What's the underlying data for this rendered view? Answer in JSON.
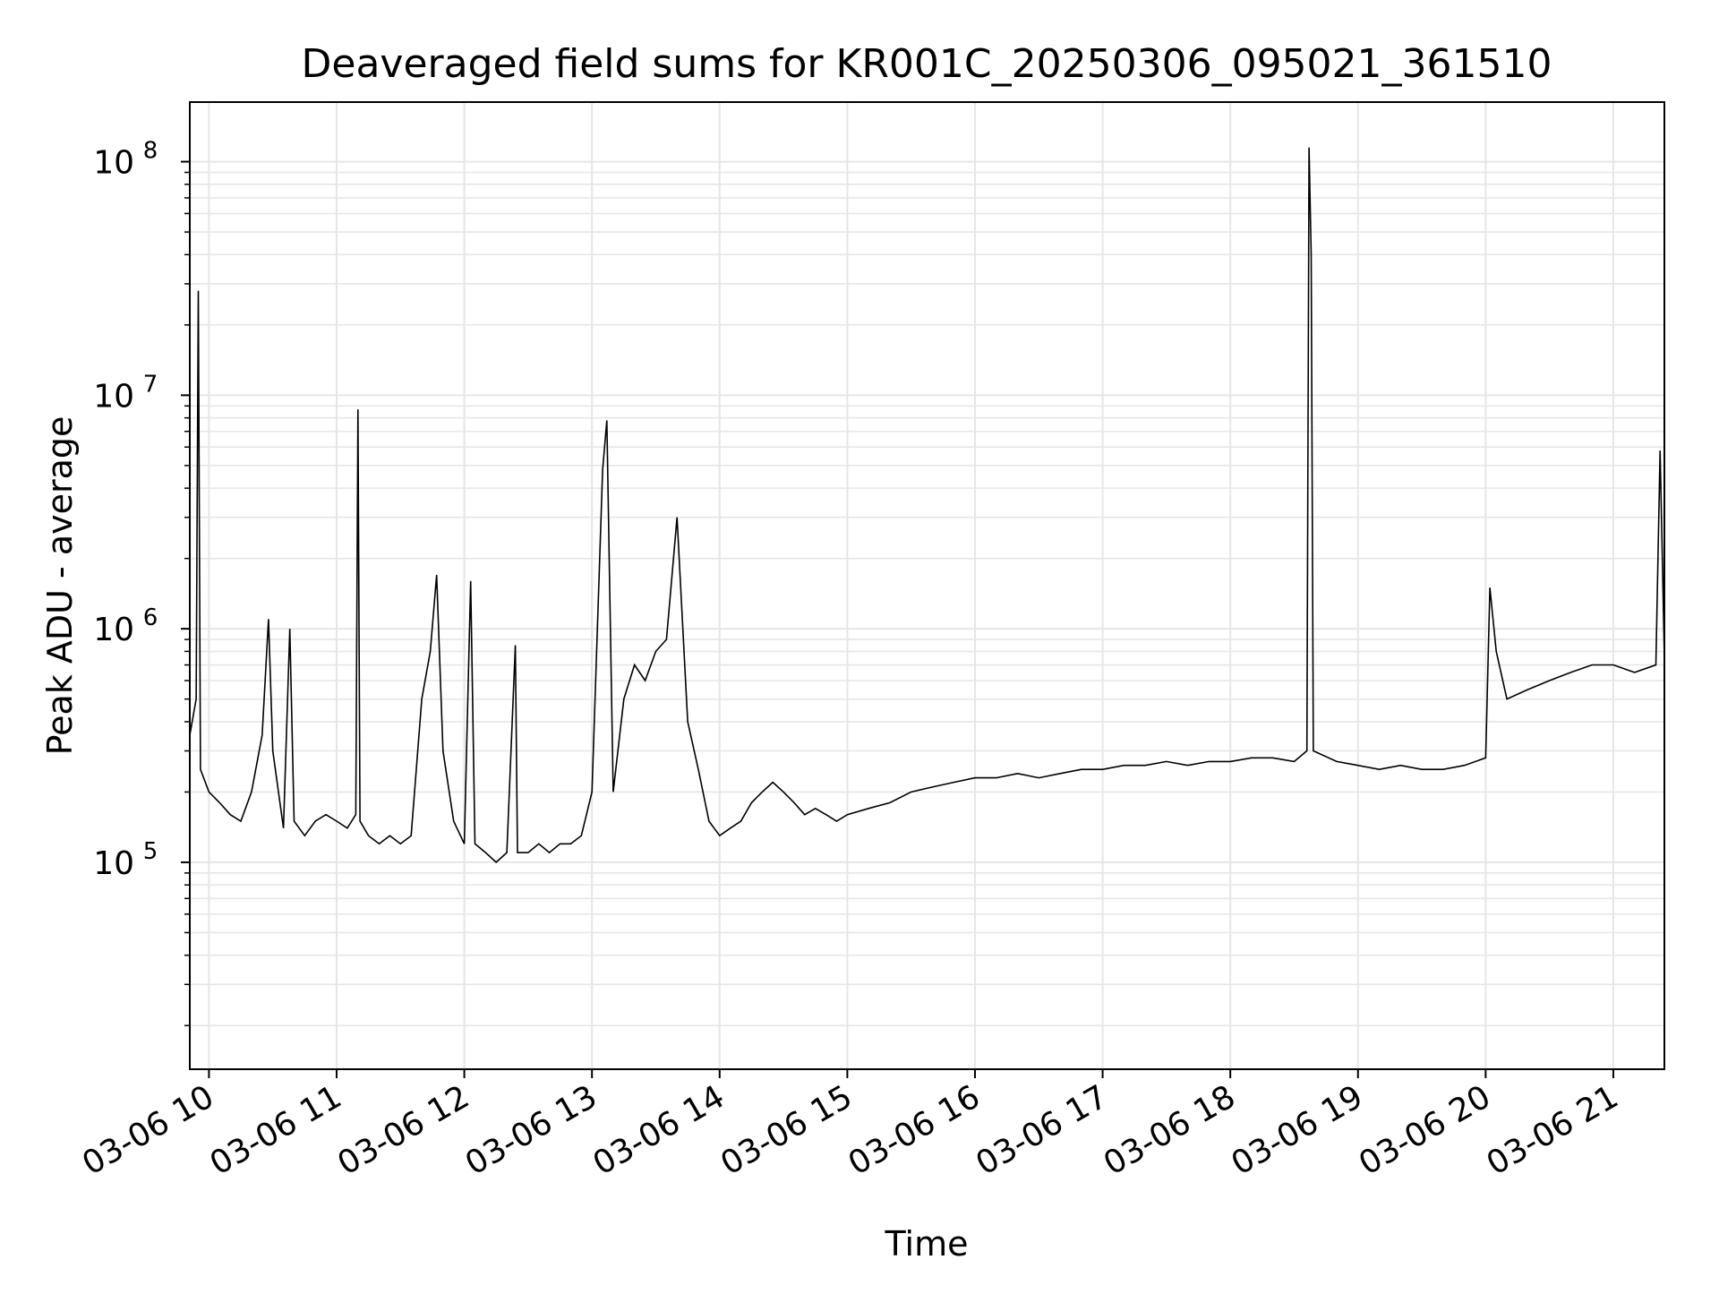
{
  "chart_data": {
    "type": "line",
    "title": "Deaveraged field sums for KR001C_20250306_095021_361510",
    "xlabel": "Time",
    "ylabel": "Peak ADU - average",
    "yscale": "log",
    "ylim": [
      13000,
      180000000
    ],
    "xlim": [
      "2025-03-06 09:51",
      "2025-03-06 21:24"
    ],
    "grid": true,
    "x_ticks": [
      {
        "t": "2025-03-06 10:00",
        "label": "03-06 10"
      },
      {
        "t": "2025-03-06 11:00",
        "label": "03-06 11"
      },
      {
        "t": "2025-03-06 12:00",
        "label": "03-06 12"
      },
      {
        "t": "2025-03-06 13:00",
        "label": "03-06 13"
      },
      {
        "t": "2025-03-06 14:00",
        "label": "03-06 14"
      },
      {
        "t": "2025-03-06 15:00",
        "label": "03-06 15"
      },
      {
        "t": "2025-03-06 16:00",
        "label": "03-06 16"
      },
      {
        "t": "2025-03-06 17:00",
        "label": "03-06 17"
      },
      {
        "t": "2025-03-06 18:00",
        "label": "03-06 18"
      },
      {
        "t": "2025-03-06 19:00",
        "label": "03-06 19"
      },
      {
        "t": "2025-03-06 20:00",
        "label": "03-06 20"
      },
      {
        "t": "2025-03-06 21:00",
        "label": "03-06 21"
      }
    ],
    "y_ticks": [
      {
        "value": 100000,
        "base": "10",
        "exp": "5"
      },
      {
        "value": 1000000,
        "base": "10",
        "exp": "6"
      },
      {
        "value": 10000000,
        "base": "10",
        "exp": "7"
      },
      {
        "value": 100000000,
        "base": "10",
        "exp": "8"
      }
    ],
    "series": [
      {
        "color": "#000000",
        "points": [
          [
            "2025-03-06 09:51",
            350000
          ],
          [
            "2025-03-06 09:54",
            500000
          ],
          [
            "2025-03-06 09:55",
            28000000
          ],
          [
            "2025-03-06 09:56",
            250000
          ],
          [
            "2025-03-06 10:00",
            200000
          ],
          [
            "2025-03-06 10:05",
            180000
          ],
          [
            "2025-03-06 10:10",
            160000
          ],
          [
            "2025-03-06 10:15",
            150000
          ],
          [
            "2025-03-06 10:20",
            200000
          ],
          [
            "2025-03-06 10:25",
            350000
          ],
          [
            "2025-03-06 10:28",
            1100000
          ],
          [
            "2025-03-06 10:30",
            300000
          ],
          [
            "2025-03-06 10:35",
            140000
          ],
          [
            "2025-03-06 10:38",
            1000000
          ],
          [
            "2025-03-06 10:40",
            150000
          ],
          [
            "2025-03-06 10:45",
            130000
          ],
          [
            "2025-03-06 10:50",
            150000
          ],
          [
            "2025-03-06 10:55",
            160000
          ],
          [
            "2025-03-06 11:00",
            150000
          ],
          [
            "2025-03-06 11:05",
            140000
          ],
          [
            "2025-03-06 11:09",
            160000
          ],
          [
            "2025-03-06 11:10",
            8700000
          ],
          [
            "2025-03-06 11:11",
            150000
          ],
          [
            "2025-03-06 11:15",
            130000
          ],
          [
            "2025-03-06 11:20",
            120000
          ],
          [
            "2025-03-06 11:25",
            130000
          ],
          [
            "2025-03-06 11:30",
            120000
          ],
          [
            "2025-03-06 11:35",
            130000
          ],
          [
            "2025-03-06 11:40",
            500000
          ],
          [
            "2025-03-06 11:44",
            800000
          ],
          [
            "2025-03-06 11:47",
            1700000
          ],
          [
            "2025-03-06 11:50",
            300000
          ],
          [
            "2025-03-06 11:55",
            150000
          ],
          [
            "2025-03-06 12:00",
            120000
          ],
          [
            "2025-03-06 12:03",
            1600000
          ],
          [
            "2025-03-06 12:05",
            120000
          ],
          [
            "2025-03-06 12:10",
            110000
          ],
          [
            "2025-03-06 12:15",
            100000
          ],
          [
            "2025-03-06 12:20",
            110000
          ],
          [
            "2025-03-06 12:24",
            850000
          ],
          [
            "2025-03-06 12:25",
            110000
          ],
          [
            "2025-03-06 12:30",
            110000
          ],
          [
            "2025-03-06 12:35",
            120000
          ],
          [
            "2025-03-06 12:40",
            110000
          ],
          [
            "2025-03-06 12:45",
            120000
          ],
          [
            "2025-03-06 12:50",
            120000
          ],
          [
            "2025-03-06 12:55",
            130000
          ],
          [
            "2025-03-06 13:00",
            200000
          ],
          [
            "2025-03-06 13:05",
            4800000
          ],
          [
            "2025-03-06 13:07",
            7800000
          ],
          [
            "2025-03-06 13:10",
            200000
          ],
          [
            "2025-03-06 13:15",
            500000
          ],
          [
            "2025-03-06 13:20",
            700000
          ],
          [
            "2025-03-06 13:25",
            600000
          ],
          [
            "2025-03-06 13:30",
            800000
          ],
          [
            "2025-03-06 13:35",
            900000
          ],
          [
            "2025-03-06 13:40",
            3000000
          ],
          [
            "2025-03-06 13:45",
            400000
          ],
          [
            "2025-03-06 13:50",
            250000
          ],
          [
            "2025-03-06 13:55",
            150000
          ],
          [
            "2025-03-06 14:00",
            130000
          ],
          [
            "2025-03-06 14:05",
            140000
          ],
          [
            "2025-03-06 14:10",
            150000
          ],
          [
            "2025-03-06 14:15",
            180000
          ],
          [
            "2025-03-06 14:20",
            200000
          ],
          [
            "2025-03-06 14:25",
            220000
          ],
          [
            "2025-03-06 14:30",
            200000
          ],
          [
            "2025-03-06 14:35",
            180000
          ],
          [
            "2025-03-06 14:40",
            160000
          ],
          [
            "2025-03-06 14:45",
            170000
          ],
          [
            "2025-03-06 14:50",
            160000
          ],
          [
            "2025-03-06 14:55",
            150000
          ],
          [
            "2025-03-06 15:00",
            160000
          ],
          [
            "2025-03-06 15:10",
            170000
          ],
          [
            "2025-03-06 15:20",
            180000
          ],
          [
            "2025-03-06 15:30",
            200000
          ],
          [
            "2025-03-06 15:40",
            210000
          ],
          [
            "2025-03-06 15:50",
            220000
          ],
          [
            "2025-03-06 16:00",
            230000
          ],
          [
            "2025-03-06 16:10",
            230000
          ],
          [
            "2025-03-06 16:20",
            240000
          ],
          [
            "2025-03-06 16:30",
            230000
          ],
          [
            "2025-03-06 16:40",
            240000
          ],
          [
            "2025-03-06 16:50",
            250000
          ],
          [
            "2025-03-06 17:00",
            250000
          ],
          [
            "2025-03-06 17:10",
            260000
          ],
          [
            "2025-03-06 17:20",
            260000
          ],
          [
            "2025-03-06 17:30",
            270000
          ],
          [
            "2025-03-06 17:40",
            260000
          ],
          [
            "2025-03-06 17:50",
            270000
          ],
          [
            "2025-03-06 18:00",
            270000
          ],
          [
            "2025-03-06 18:10",
            280000
          ],
          [
            "2025-03-06 18:20",
            280000
          ],
          [
            "2025-03-06 18:30",
            270000
          ],
          [
            "2025-03-06 18:36",
            300000
          ],
          [
            "2025-03-06 18:37",
            115000000
          ],
          [
            "2025-03-06 18:38",
            40000000
          ],
          [
            "2025-03-06 18:39",
            300000
          ],
          [
            "2025-03-06 18:50",
            270000
          ],
          [
            "2025-03-06 19:00",
            260000
          ],
          [
            "2025-03-06 19:10",
            250000
          ],
          [
            "2025-03-06 19:20",
            260000
          ],
          [
            "2025-03-06 19:30",
            250000
          ],
          [
            "2025-03-06 19:40",
            250000
          ],
          [
            "2025-03-06 19:50",
            260000
          ],
          [
            "2025-03-06 20:00",
            280000
          ],
          [
            "2025-03-06 20:02",
            1500000
          ],
          [
            "2025-03-06 20:05",
            800000
          ],
          [
            "2025-03-06 20:10",
            500000
          ],
          [
            "2025-03-06 20:20",
            550000
          ],
          [
            "2025-03-06 20:30",
            600000
          ],
          [
            "2025-03-06 20:40",
            650000
          ],
          [
            "2025-03-06 20:50",
            700000
          ],
          [
            "2025-03-06 21:00",
            700000
          ],
          [
            "2025-03-06 21:10",
            650000
          ],
          [
            "2025-03-06 21:20",
            700000
          ],
          [
            "2025-03-06 21:22",
            5800000
          ],
          [
            "2025-03-06 21:24",
            750000
          ]
        ]
      }
    ]
  }
}
